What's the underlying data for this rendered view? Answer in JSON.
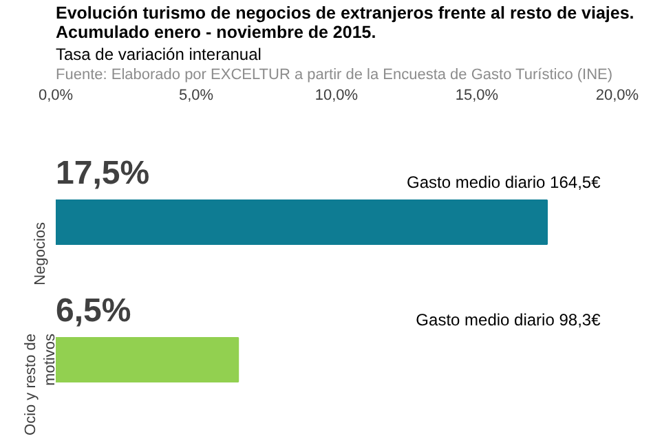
{
  "chart_data": {
    "type": "bar",
    "orientation": "horizontal",
    "title": "Evolución turismo de negocios de extranjeros frente al resto de viajes. Acumulado enero - noviembre de 2015.",
    "subtitle": "Tasa de variación interanual",
    "annotations": [
      "Fuente: Elaborado por EXCELTUR a partir de la Encuesta de Gasto Turístico (INE)",
      "Gasto medio diario 164,5€",
      "Gasto medio diario 98,3€"
    ],
    "categories": [
      "Negocios",
      "Ocio y resto de motivos"
    ],
    "values": [
      17.5,
      6.5
    ],
    "colors": [
      "#0e7c93",
      "#92d050"
    ],
    "value_labels": [
      "17,5%",
      "6,5%"
    ],
    "xlim": [
      0,
      20
    ],
    "xticks": [
      {
        "value": 0,
        "label": "0,0%"
      },
      {
        "value": 5,
        "label": "5,0%"
      },
      {
        "value": 10,
        "label": "10,0%"
      },
      {
        "value": 15,
        "label": "15,0%"
      },
      {
        "value": 20,
        "label": "20,0%"
      }
    ],
    "grid": false
  }
}
